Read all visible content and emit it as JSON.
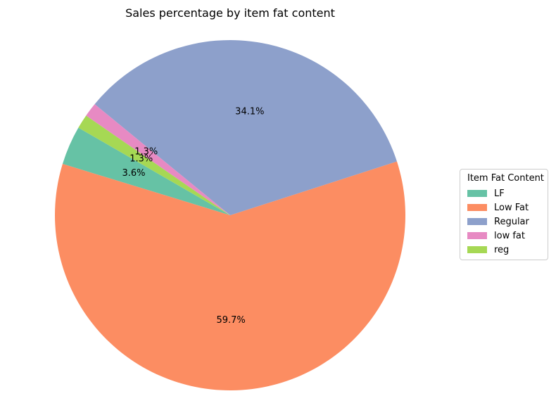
{
  "chart_data": {
    "type": "pie",
    "title": "Sales percentage by item fat content",
    "start_angle_deg": 150,
    "direction": "counterclockwise",
    "slices": [
      {
        "label": "LF",
        "value": 3.6,
        "pct_label": "3.6%",
        "color": "#66c2a5"
      },
      {
        "label": "Low Fat",
        "value": 59.7,
        "pct_label": "59.7%",
        "color": "#fc8d62"
      },
      {
        "label": "Regular",
        "value": 34.1,
        "pct_label": "34.1%",
        "color": "#8da0cb"
      },
      {
        "label": "low fat",
        "value": 1.3,
        "pct_label": "1.3%",
        "color": "#e78ac3"
      },
      {
        "label": "reg",
        "value": 1.3,
        "pct_label": "1.3%",
        "color": "#a6d854"
      }
    ],
    "legend": {
      "title": "Item Fat Content",
      "placement": "right"
    }
  }
}
